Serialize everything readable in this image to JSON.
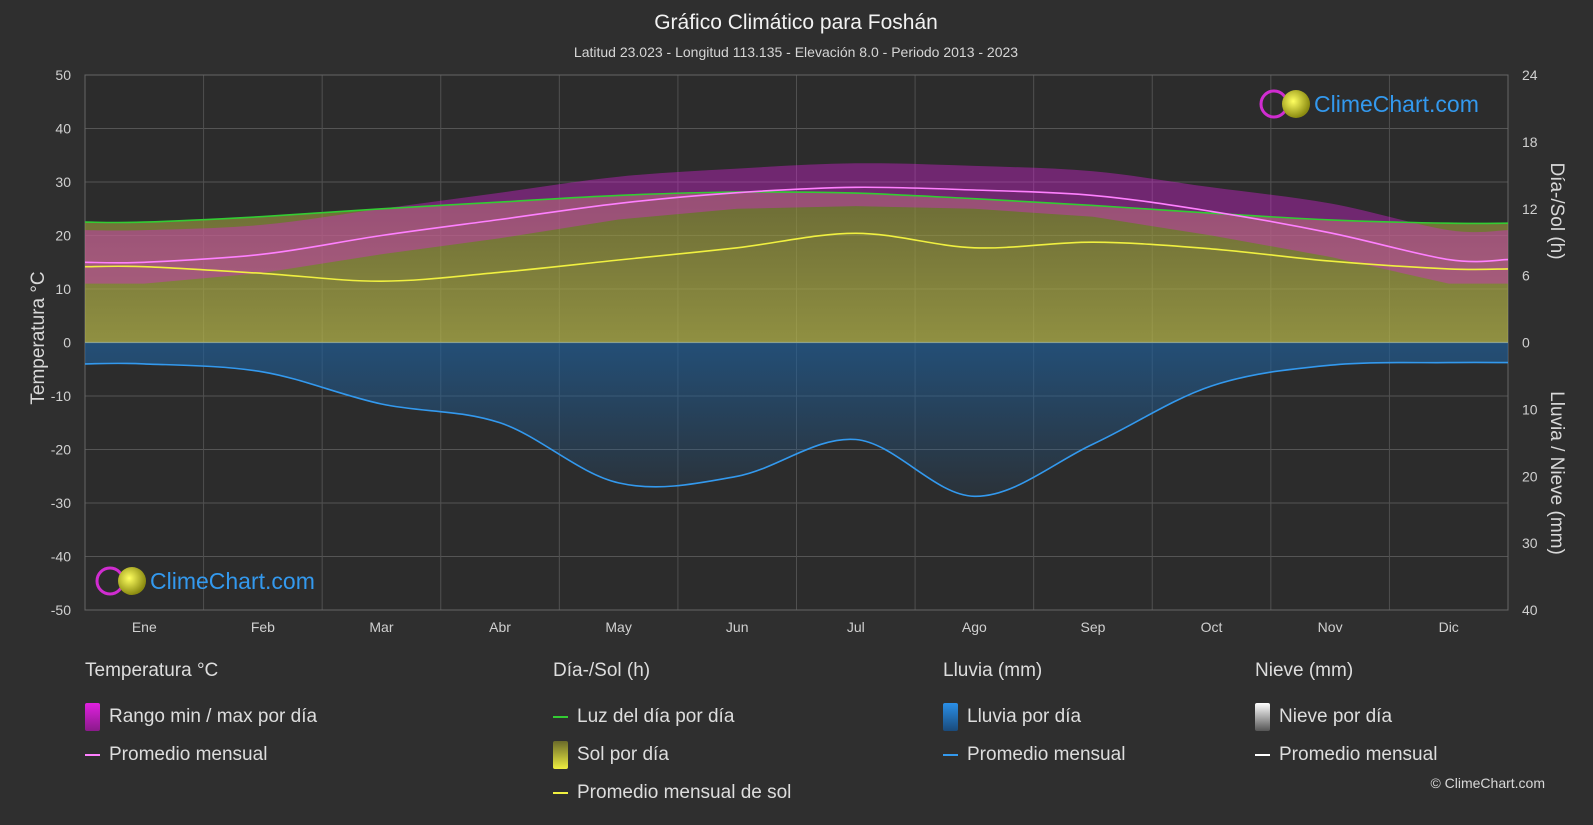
{
  "header": {
    "title": "Gráfico Climático para Foshán",
    "subtitle": "Latitud 23.023 - Longitud 113.135 - Elevación 8.0 - Periodo 2013 - 2023"
  },
  "watermark": "ClimeChart.com",
  "copyright": "© ClimeChart.com",
  "colors": {
    "background": "#2f2f2f",
    "temp_range": "#e020e0",
    "temp_avg": "#ff80ff",
    "daylight": "#33cc33",
    "sunshine": "#c8c832",
    "sunshine_avg": "#f0f040",
    "rain": "#2a7fd4",
    "rain_avg": "#3399ee",
    "snow": "#ffffff",
    "watermark": "#3399ee"
  },
  "chart_data": {
    "type": "area",
    "months": [
      "Ene",
      "Feb",
      "Mar",
      "Abr",
      "May",
      "Jun",
      "Jul",
      "Ago",
      "Sep",
      "Oct",
      "Nov",
      "Dic"
    ],
    "axes": {
      "left": {
        "label": "Temperatura °C",
        "range": [
          -50,
          50
        ],
        "ticks": [
          "50",
          "40",
          "30",
          "20",
          "10",
          "0",
          "-10",
          "-20",
          "-30",
          "-40",
          "-50"
        ]
      },
      "right_top": {
        "label": "Día-/Sol (h)",
        "range": [
          0,
          24
        ],
        "ticks": [
          "24",
          "18",
          "12",
          "6",
          "0"
        ]
      },
      "right_bottom": {
        "label": "Lluvia / Nieve (mm)",
        "range": [
          0,
          40
        ],
        "ticks": [
          "0",
          "10",
          "20",
          "30",
          "40"
        ]
      }
    },
    "series": {
      "temp_avg": [
        15,
        16.5,
        20,
        23,
        26,
        28,
        29,
        28.5,
        27.5,
        24.5,
        20.5,
        15.5
      ],
      "temp_max": [
        21,
        22,
        25,
        28,
        31,
        32.5,
        33.5,
        33,
        32,
        29,
        26,
        21
      ],
      "temp_min": [
        11,
        13,
        16.5,
        19.5,
        23,
        25,
        25.5,
        25,
        23.5,
        20,
        16,
        11
      ],
      "daylight_h": [
        10.8,
        11.3,
        12.0,
        12.6,
        13.2,
        13.5,
        13.4,
        12.9,
        12.3,
        11.6,
        11.0,
        10.7
      ],
      "sunshine_avg_h": [
        6.8,
        6.2,
        5.5,
        6.3,
        7.4,
        8.5,
        9.8,
        8.5,
        9.0,
        8.4,
        7.3,
        6.6
      ],
      "rain_avg_mm": [
        3.2,
        4.4,
        9.2,
        12.0,
        21.0,
        20.0,
        14.5,
        23.0,
        15.2,
        6.5,
        3.4,
        3.0
      ]
    },
    "grid": true,
    "legend": {
      "groups": [
        {
          "title": "Temperatura °C",
          "items": [
            "Rango min / max por día",
            "Promedio mensual"
          ]
        },
        {
          "title": "Día-/Sol (h)",
          "items": [
            "Luz del día por día",
            "Sol por día",
            "Promedio mensual de sol"
          ]
        },
        {
          "title": "Lluvia (mm)",
          "items": [
            "Lluvia por día",
            "Promedio mensual"
          ]
        },
        {
          "title": "Nieve (mm)",
          "items": [
            "Nieve por día",
            "Promedio mensual"
          ]
        }
      ]
    }
  }
}
